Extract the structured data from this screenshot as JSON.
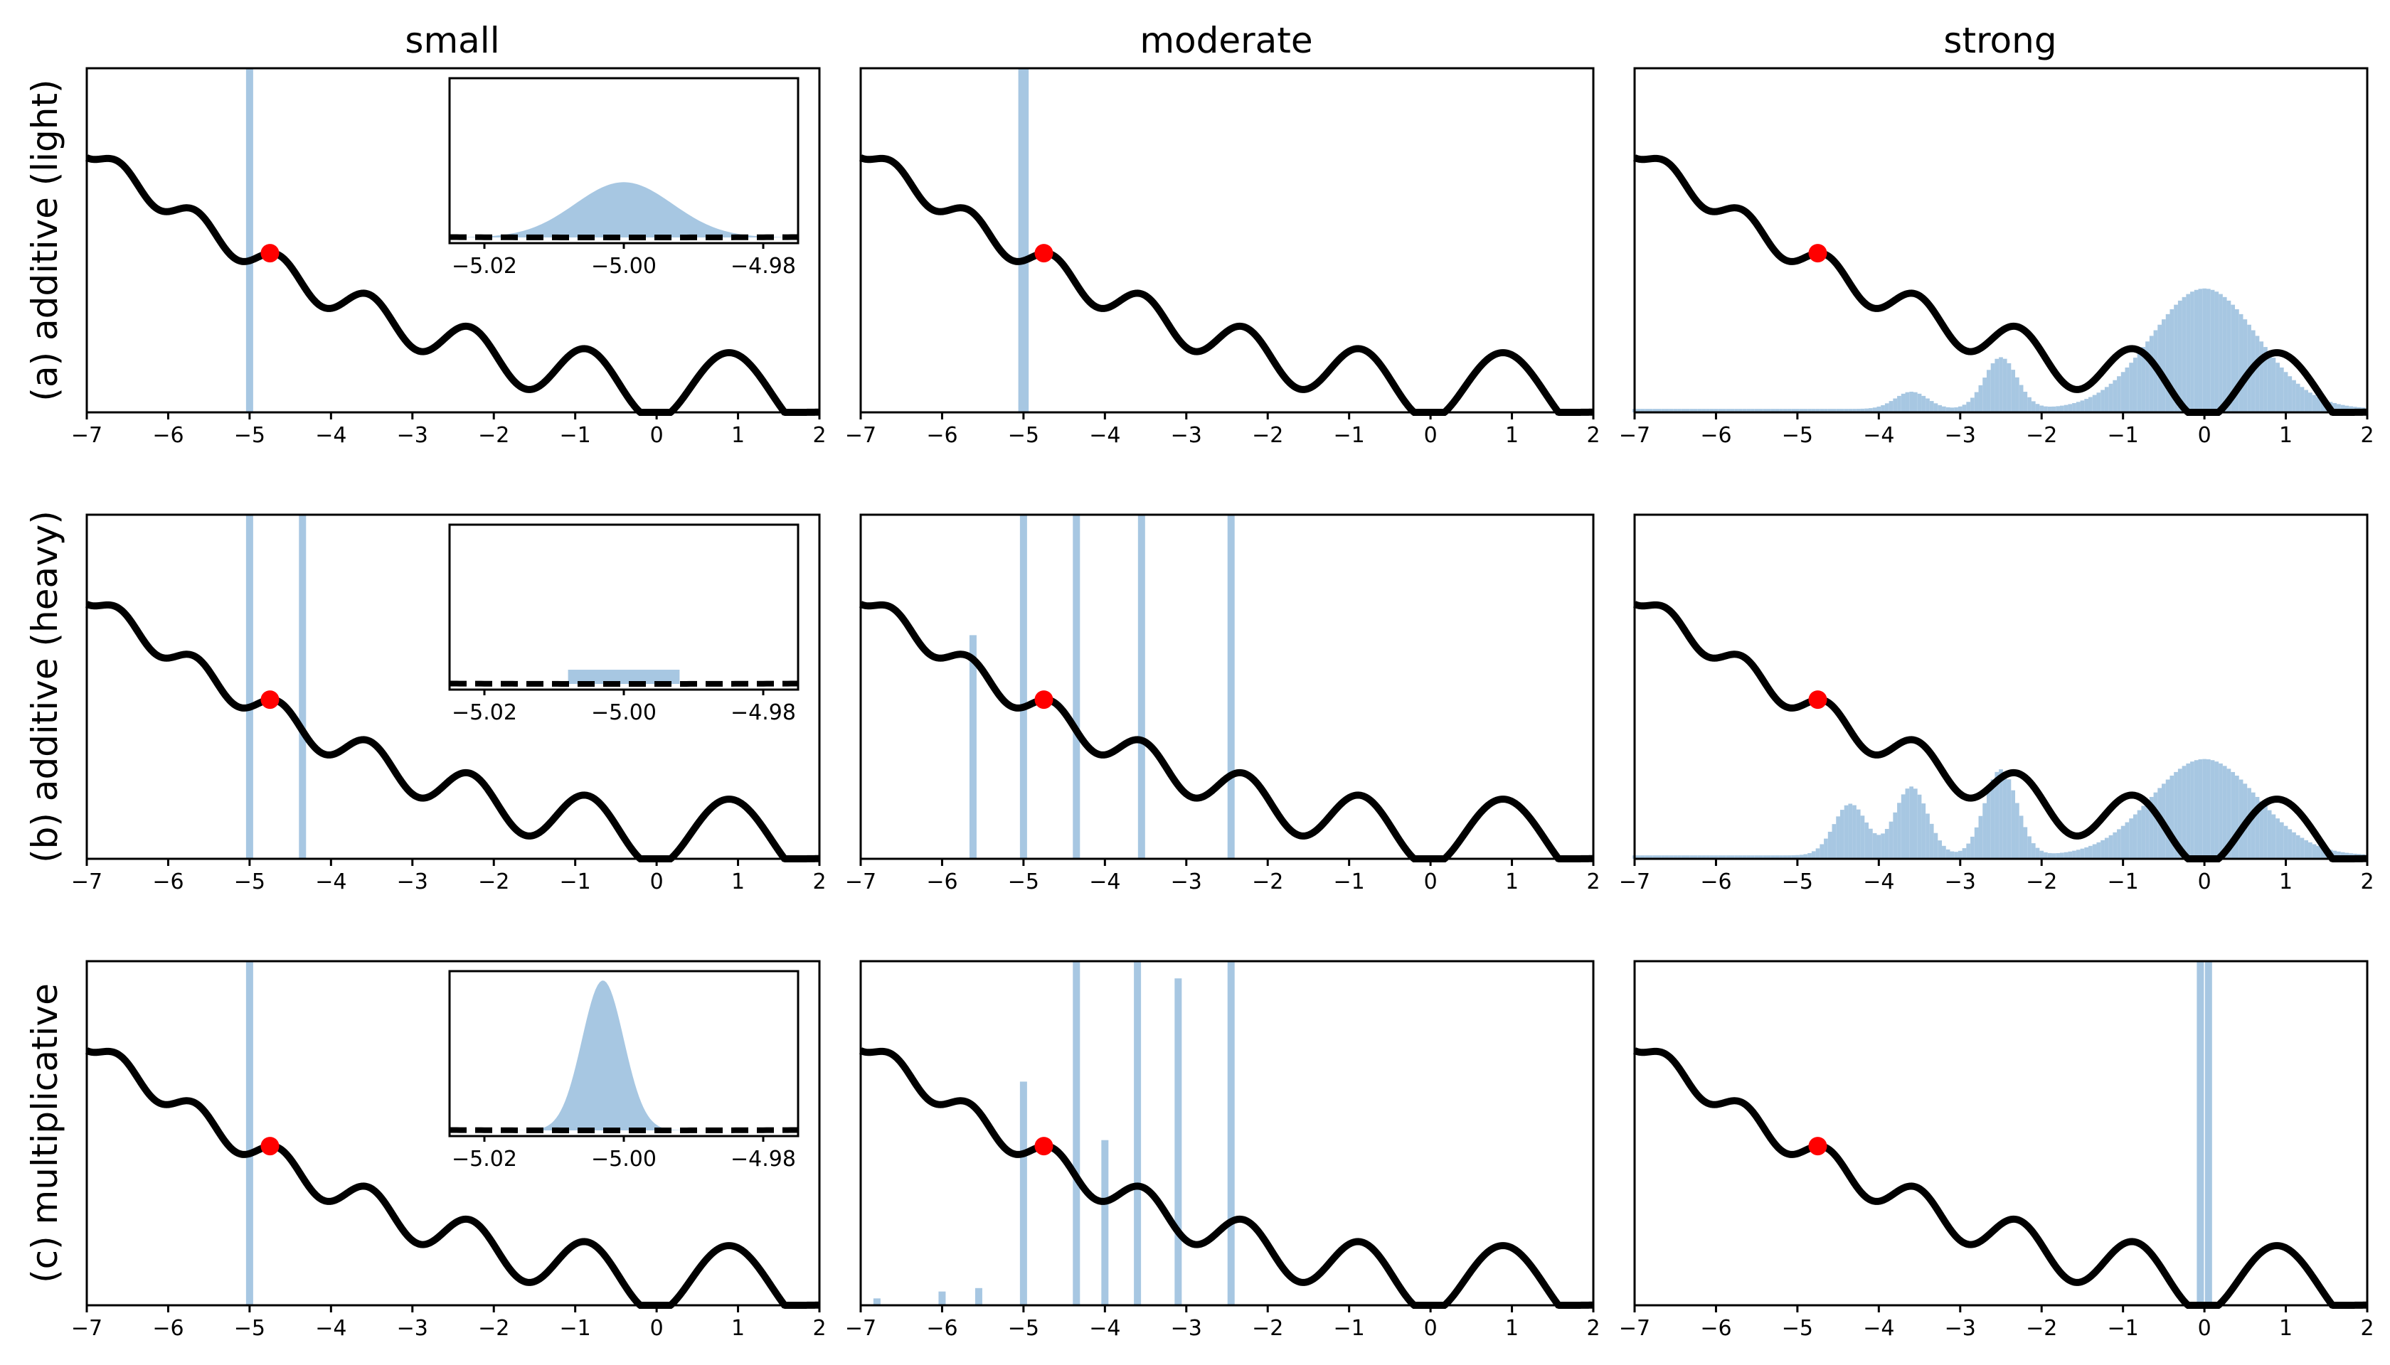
{
  "figure": {
    "column_titles": [
      "small",
      "moderate",
      "strong"
    ],
    "row_labels": [
      "(a) additive (light)",
      "(b) additive (heavy)",
      "(c) multiplicative"
    ]
  },
  "chart_data": {
    "type": "histogram-grid",
    "xlim": [
      -7,
      2
    ],
    "xticks": [
      -7,
      -6,
      -5,
      -4,
      -3,
      -2,
      -1,
      0,
      1,
      2
    ],
    "xtick_labels": [
      "−7",
      "−6",
      "−5",
      "−4",
      "−3",
      "−2",
      "−1",
      "0",
      "1",
      "2"
    ],
    "grid": false,
    "curve": {
      "description": "wiggly potential landscape",
      "color": "#000000",
      "start_point": {
        "x": -4.75,
        "color": "#ff0000"
      }
    },
    "histogram_color": "#a7c7e2",
    "inset": {
      "xlim": [
        -5.025,
        -4.975
      ],
      "xticks": [
        -5.02,
        -5.0,
        -4.98
      ],
      "xtick_labels": [
        "−5.02",
        "−5.00",
        "−4.98"
      ],
      "curve_style": "dashed"
    },
    "panels": [
      {
        "row": 0,
        "col": 0,
        "histogram": [
          {
            "x": -5.0,
            "height": 1.0
          }
        ],
        "inset": {
          "shape": "gaussian",
          "center": -5.0,
          "width": 0.007,
          "height": 0.35
        }
      },
      {
        "row": 0,
        "col": 1,
        "histogram": [
          {
            "x": -4.98,
            "height": 1.0
          },
          {
            "x": -5.02,
            "height": 1.0
          }
        ]
      },
      {
        "row": 0,
        "col": 2,
        "histogram_profile": "broad-mixture",
        "peaks": [
          {
            "x": 0.0,
            "height": 0.35
          },
          {
            "x": -2.5,
            "height": 0.15
          },
          {
            "x": -3.6,
            "height": 0.05
          }
        ]
      },
      {
        "row": 1,
        "col": 0,
        "histogram": [
          {
            "x": -5.0,
            "height": 1.0
          },
          {
            "x": -4.35,
            "height": 1.0
          }
        ],
        "inset": {
          "shape": "flat",
          "start": -5.008,
          "end": -4.992,
          "height": 0.09
        }
      },
      {
        "row": 1,
        "col": 1,
        "histogram": [
          {
            "x": -5.62,
            "height": 0.65
          },
          {
            "x": -5.0,
            "height": 1.0
          },
          {
            "x": -4.35,
            "height": 1.0
          },
          {
            "x": -3.55,
            "height": 1.0
          },
          {
            "x": -2.45,
            "height": 1.0
          }
        ]
      },
      {
        "row": 1,
        "col": 2,
        "histogram_profile": "broad-mixture",
        "peaks": [
          {
            "x": 0.0,
            "height": 0.28
          },
          {
            "x": -2.5,
            "height": 0.25
          },
          {
            "x": -3.6,
            "height": 0.2
          },
          {
            "x": -4.35,
            "height": 0.15
          }
        ]
      },
      {
        "row": 2,
        "col": 0,
        "histogram": [
          {
            "x": -5.0,
            "height": 1.0
          }
        ],
        "inset": {
          "shape": "gaussian",
          "center": -5.003,
          "width": 0.003,
          "height": 0.95
        }
      },
      {
        "row": 2,
        "col": 1,
        "histogram": [
          {
            "x": -6.8,
            "height": 0.02
          },
          {
            "x": -6.0,
            "height": 0.04
          },
          {
            "x": -5.55,
            "height": 0.05
          },
          {
            "x": -5.0,
            "height": 0.65
          },
          {
            "x": -4.35,
            "height": 1.0
          },
          {
            "x": -4.0,
            "height": 0.48
          },
          {
            "x": -3.6,
            "height": 1.0
          },
          {
            "x": -3.1,
            "height": 0.95
          },
          {
            "x": -2.45,
            "height": 1.0
          }
        ]
      },
      {
        "row": 2,
        "col": 2,
        "histogram": [
          {
            "x": -0.05,
            "height": 1.0
          },
          {
            "x": 0.05,
            "height": 1.0
          }
        ]
      }
    ]
  }
}
